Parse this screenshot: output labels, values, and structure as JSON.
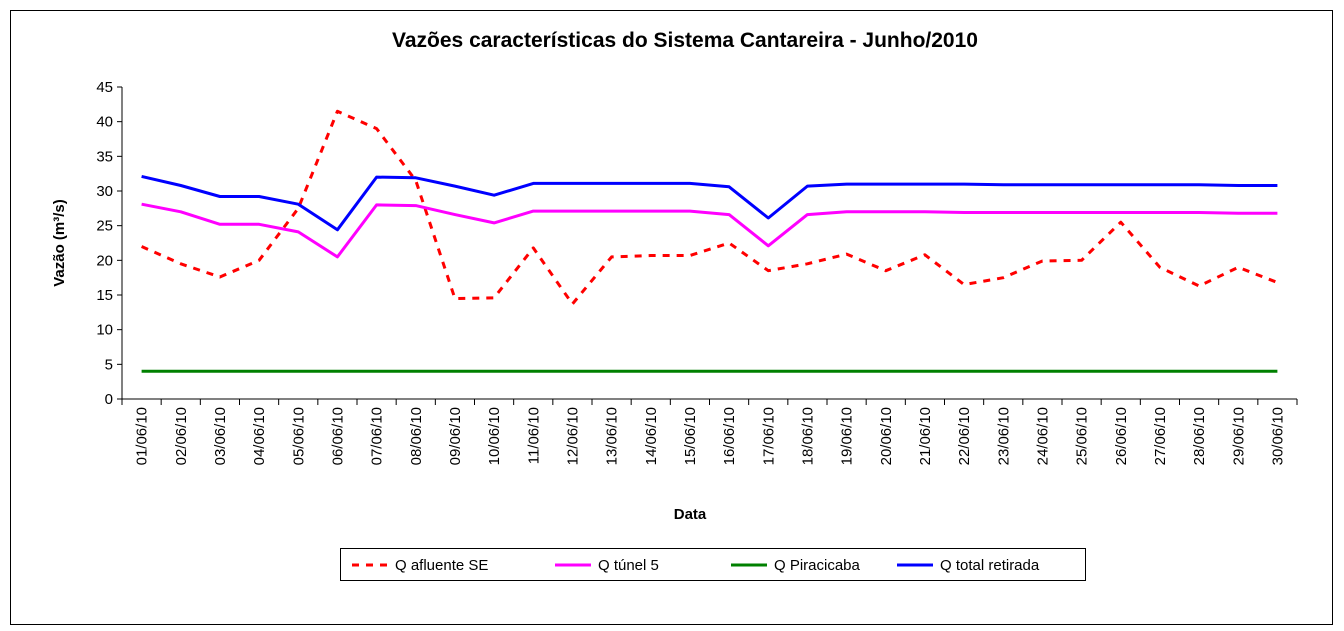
{
  "chart_data": {
    "type": "line",
    "title": "Vazões características do Sistema Cantareira - Junho/2010",
    "x_label": "Data",
    "y_label": "Vazão (m³/s)",
    "categories": [
      "01/06/10",
      "02/06/10",
      "03/06/10",
      "04/06/10",
      "05/06/10",
      "06/06/10",
      "07/06/10",
      "08/06/10",
      "09/06/10",
      "10/06/10",
      "11/06/10",
      "12/06/10",
      "13/06/10",
      "14/06/10",
      "15/06/10",
      "16/06/10",
      "17/06/10",
      "18/06/10",
      "19/06/10",
      "20/06/10",
      "21/06/10",
      "22/06/10",
      "23/06/10",
      "24/06/10",
      "25/06/10",
      "26/06/10",
      "27/06/10",
      "28/06/10",
      "29/06/10",
      "30/06/10"
    ],
    "series": [
      {
        "name": "Q afluente SE",
        "color": "#ff0000",
        "dashed": true,
        "values": [
          22,
          19.5,
          17.6,
          20,
          27.5,
          41.5,
          39,
          31.5,
          14.5,
          14.6,
          21.8,
          13.7,
          20.5,
          20.7,
          20.7,
          22.5,
          18.5,
          19.5,
          20.9,
          18.5,
          20.8,
          16.5,
          17.5,
          19.9,
          20,
          25.5,
          19,
          16.3,
          19,
          16.8
        ]
      },
      {
        "name": "Q túnel 5",
        "color": "#ff00ff",
        "values": [
          28.1,
          27,
          25.2,
          25.2,
          24.1,
          20.5,
          28,
          27.9,
          26.6,
          25.4,
          27.1,
          27.1,
          27.1,
          27.1,
          27.1,
          26.6,
          22.1,
          26.6,
          27,
          27,
          27,
          26.9,
          26.9,
          26.9,
          26.9,
          26.9,
          26.9,
          26.9,
          26.8,
          26.8
        ]
      },
      {
        "name": "Q Piracicaba",
        "color": "#008000",
        "values": [
          4,
          4,
          4,
          4,
          4,
          4,
          4,
          4,
          4,
          4,
          4,
          4,
          4,
          4,
          4,
          4,
          4,
          4,
          4,
          4,
          4,
          4,
          4,
          4,
          4,
          4,
          4,
          4,
          4,
          4
        ]
      },
      {
        "name": "Q total retirada",
        "color": "#0000ff",
        "values": [
          32.1,
          30.8,
          29.2,
          29.2,
          28.1,
          24.4,
          32,
          31.9,
          30.7,
          29.4,
          31.1,
          31.1,
          31.1,
          31.1,
          31.1,
          30.6,
          26.1,
          30.7,
          31,
          31,
          31,
          31,
          30.9,
          30.9,
          30.9,
          30.9,
          30.9,
          30.9,
          30.8,
          30.8
        ]
      }
    ],
    "ylim": [
      0,
      45
    ],
    "yticks": [
      0,
      5,
      10,
      15,
      20,
      25,
      30,
      35,
      40,
      45
    ],
    "legend": "bottom"
  }
}
